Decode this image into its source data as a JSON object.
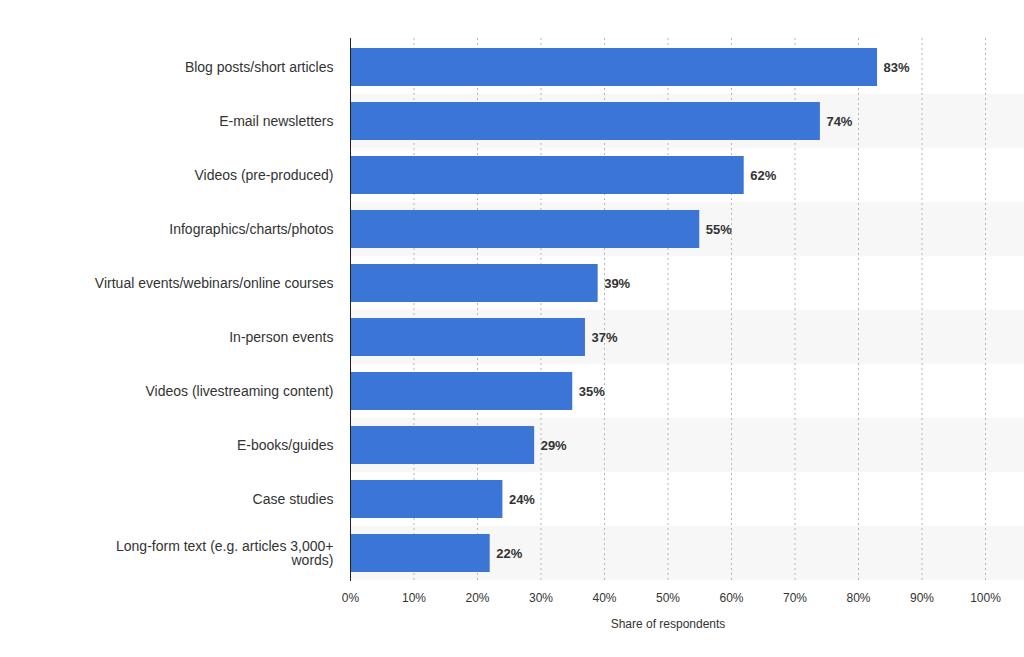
{
  "chart_data": {
    "type": "bar",
    "orientation": "horizontal",
    "categories": [
      "Blog posts/short articles",
      "E-mail newsletters",
      "Videos (pre-produced)",
      "Infographics/charts/photos",
      "Virtual events/webinars/online courses",
      "In-person events",
      "Videos (livestreaming content)",
      "E-books/guides",
      "Case studies",
      "Long-form text (e.g. articles 3,000+ words)"
    ],
    "values": [
      83,
      74,
      62,
      55,
      39,
      37,
      35,
      29,
      24,
      22
    ],
    "value_labels": [
      "83%",
      "74%",
      "62%",
      "55%",
      "39%",
      "37%",
      "35%",
      "29%",
      "24%",
      "22%"
    ],
    "color": "#3b75d6",
    "x_label": "Share of respondents",
    "xlim": [
      0,
      100
    ],
    "xticks": [
      {
        "value": 0,
        "label": "0%"
      },
      {
        "value": 10,
        "label": "10%"
      },
      {
        "value": 20,
        "label": "20%"
      },
      {
        "value": 30,
        "label": "30%"
      },
      {
        "value": 40,
        "label": "40%"
      },
      {
        "value": 50,
        "label": "50%"
      },
      {
        "value": 60,
        "label": "60%"
      },
      {
        "value": 70,
        "label": "70%"
      },
      {
        "value": 80,
        "label": "80%"
      },
      {
        "value": 90,
        "label": "90%"
      },
      {
        "value": 100,
        "label": "100%"
      }
    ],
    "grid": true,
    "data_labels": true
  }
}
